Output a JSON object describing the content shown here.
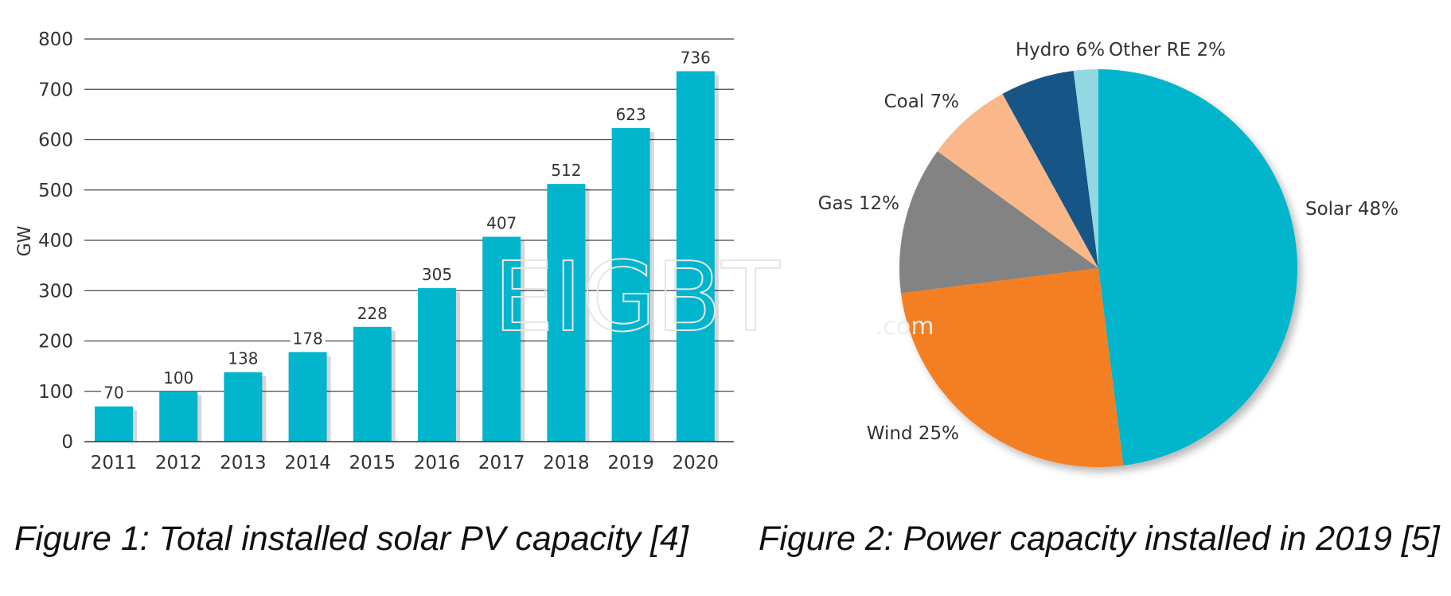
{
  "watermark": {
    "text": "EIGBT",
    "suffix": ".com"
  },
  "figures": [
    {
      "caption": "Figure 1: Total installed solar PV capacity [4]"
    },
    {
      "caption": "Figure 2: Power capacity installed in 2019 [5]"
    }
  ],
  "chart_data": [
    {
      "type": "bar",
      "title": "",
      "xlabel": "",
      "ylabel": "GW",
      "categories": [
        "2011",
        "2012",
        "2013",
        "2014",
        "2015",
        "2016",
        "2017",
        "2018",
        "2019",
        "2020"
      ],
      "values": [
        70,
        100,
        138,
        178,
        228,
        305,
        407,
        512,
        623,
        736
      ],
      "value_labels": [
        "70",
        "100",
        "138",
        "178",
        "228",
        "305",
        "407",
        "512",
        "623",
        "736"
      ],
      "ylim": [
        0,
        800
      ],
      "yticks": [
        0,
        100,
        200,
        300,
        400,
        500,
        600,
        700,
        800
      ],
      "grid": true,
      "bar_color": "#00b5cc"
    },
    {
      "type": "pie",
      "title": "",
      "start": "12 o'clock",
      "direction": "clockwise",
      "slices": [
        {
          "label": "Solar 48%",
          "value": 48,
          "color": "#00b5cc"
        },
        {
          "label": "Wind 25%",
          "value": 25,
          "color": "#f47f22"
        },
        {
          "label": "Gas 12%",
          "value": 12,
          "color": "#838383"
        },
        {
          "label": "Coal 7%",
          "value": 7,
          "color": "#fab789"
        },
        {
          "label": "Hydro 6%",
          "value": 6,
          "color": "#135585"
        },
        {
          "label": "Other RE 2%",
          "value": 2,
          "color": "#92d8e3"
        }
      ]
    }
  ]
}
